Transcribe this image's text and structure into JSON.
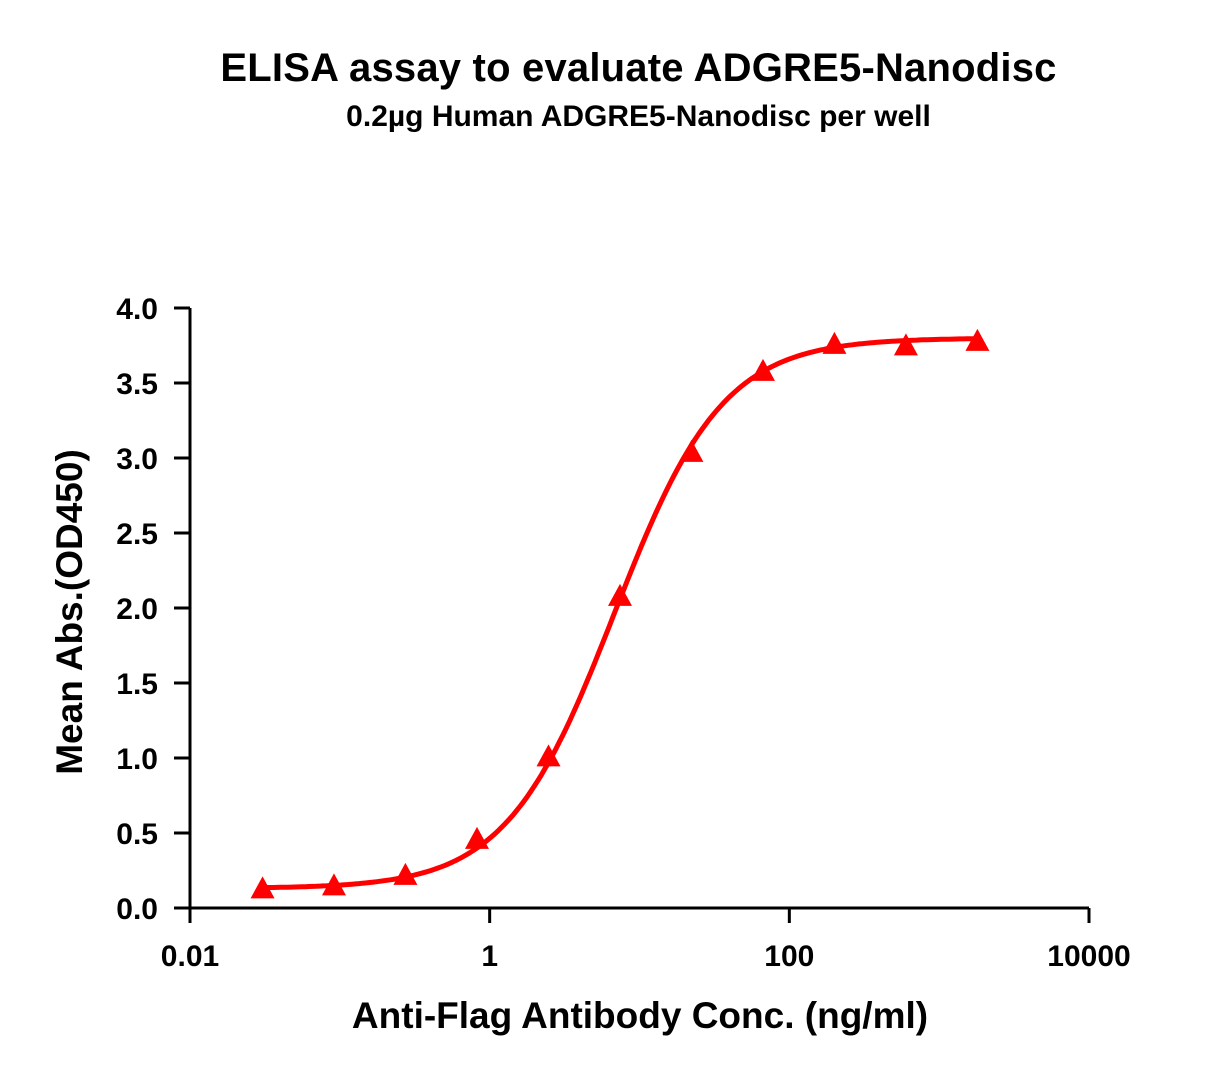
{
  "chart_data": {
    "type": "line",
    "title": "ELISA assay to evaluate ADGRE5-Nanodisc",
    "subtitle": "0.2µg Human ADGRE5-Nanodisc per well",
    "xlabel": "Anti-Flag Antibody Conc. (ng/ml)",
    "ylabel": "Mean Abs.(OD450)",
    "x_scale": "log",
    "xlim": [
      0.01,
      10000
    ],
    "ylim": [
      0.0,
      4.0
    ],
    "x_ticks": [
      0.01,
      1,
      100,
      10000
    ],
    "x_tick_labels": [
      "0.01",
      "1",
      "100",
      "10000"
    ],
    "y_ticks": [
      0.0,
      0.5,
      1.0,
      1.5,
      2.0,
      2.5,
      3.0,
      3.5,
      4.0
    ],
    "y_tick_labels": [
      "0.0",
      "0.5",
      "1.0",
      "1.5",
      "2.0",
      "2.5",
      "3.0",
      "3.5",
      "4.0"
    ],
    "grid": false,
    "legend": null,
    "series": [
      {
        "name": "ADGRE5-Nanodisc",
        "color": "#ff0000",
        "marker": "triangle",
        "x": [
          0.0305,
          0.0914,
          0.274,
          0.823,
          2.47,
          7.41,
          22.2,
          66.7,
          200,
          600,
          1800
        ],
        "y": [
          0.12,
          0.14,
          0.21,
          0.45,
          1.0,
          2.07,
          3.03,
          3.57,
          3.75,
          3.74,
          3.77
        ],
        "fit": {
          "model": "4PL",
          "bottom": 0.13,
          "top": 3.8,
          "ec50": 6.8,
          "hill": 1.2
        }
      }
    ]
  }
}
